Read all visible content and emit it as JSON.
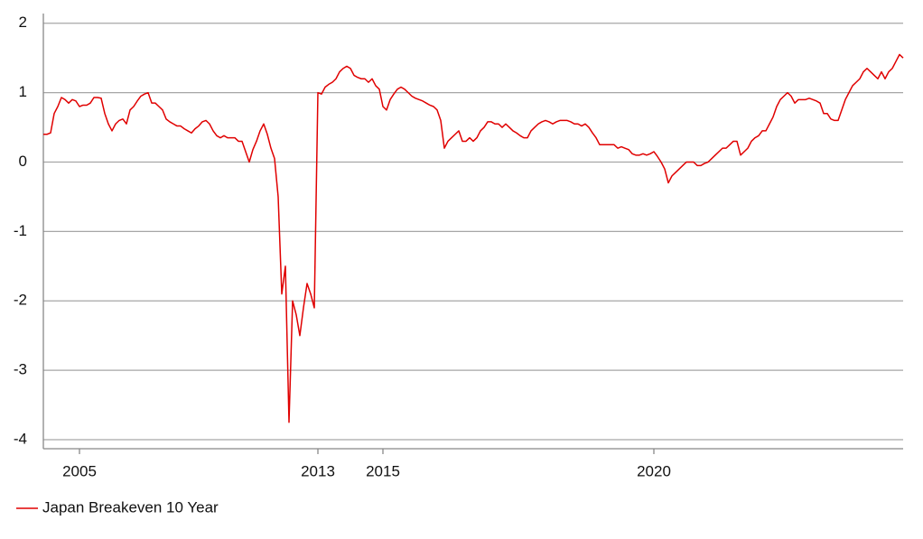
{
  "chart_data": {
    "type": "line",
    "categories": [
      null,
      null,
      null,
      null,
      null,
      null,
      null,
      null,
      null,
      null,
      "2005",
      null,
      null,
      null,
      null,
      null,
      null,
      null,
      null,
      null,
      null,
      null,
      null,
      null,
      null,
      null,
      null,
      null,
      null,
      null,
      null,
      null,
      null,
      null,
      null,
      null,
      null,
      null,
      null,
      null,
      null,
      null,
      null,
      null,
      null,
      null,
      null,
      null,
      null,
      null,
      null,
      null,
      null,
      null,
      null,
      null,
      null,
      null,
      null,
      null,
      null,
      null,
      null,
      null,
      null,
      null,
      null,
      null,
      null,
      null,
      null,
      null,
      null,
      null,
      null,
      null,
      "2013",
      null,
      null,
      null,
      null,
      null,
      null,
      null,
      null,
      null,
      null,
      null,
      null,
      null,
      null,
      null,
      null,
      null,
      "2015",
      null,
      null,
      null,
      null,
      null,
      null,
      null,
      null,
      null,
      null,
      null,
      null,
      null,
      null,
      null,
      null,
      null,
      null,
      null,
      null,
      null,
      null,
      null,
      null,
      null,
      null,
      null,
      null,
      null,
      null,
      null,
      null,
      null,
      null,
      null,
      null,
      null,
      null,
      null,
      null,
      null,
      null,
      null,
      null,
      null,
      null,
      null,
      null,
      null,
      null,
      null,
      null,
      null,
      null,
      null,
      null,
      null,
      null,
      null,
      null,
      null,
      null,
      null,
      null,
      null,
      null,
      null,
      null,
      null,
      null,
      null,
      null,
      null,
      null,
      "2020",
      null,
      null,
      null,
      null,
      null,
      null,
      null,
      null,
      null,
      null,
      null,
      null,
      null,
      null,
      null,
      null,
      null,
      null,
      null,
      null,
      null,
      null,
      null,
      null,
      null,
      null,
      null,
      null,
      null,
      null,
      null,
      null,
      null,
      null,
      null,
      null,
      null,
      null,
      null,
      null,
      null,
      null,
      null,
      null,
      null,
      null,
      null,
      null,
      null,
      null,
      null,
      null,
      null,
      null,
      null,
      null,
      null,
      null,
      null,
      null,
      null,
      null,
      null,
      null,
      null,
      null,
      null,
      null,
      null
    ],
    "series": [
      {
        "name": "Japan Breakeven 10 Year",
        "color": "#e00000",
        "values": [
          0.4,
          0.4,
          0.42,
          0.7,
          0.8,
          0.93,
          0.9,
          0.85,
          0.9,
          0.88,
          0.8,
          0.82,
          0.82,
          0.85,
          0.93,
          0.93,
          0.92,
          0.7,
          0.55,
          0.45,
          0.55,
          0.6,
          0.62,
          0.55,
          0.75,
          0.8,
          0.88,
          0.95,
          0.98,
          1.0,
          0.85,
          0.85,
          0.8,
          0.75,
          0.62,
          0.58,
          0.55,
          0.52,
          0.52,
          0.48,
          0.45,
          0.42,
          0.48,
          0.52,
          0.58,
          0.6,
          0.55,
          0.45,
          0.38,
          0.35,
          0.38,
          0.35,
          0.35,
          0.35,
          0.3,
          0.3,
          0.15,
          0.0,
          0.18,
          0.3,
          0.45,
          0.55,
          0.4,
          0.2,
          0.05,
          -0.5,
          -1.9,
          -1.5,
          -3.75,
          -2.0,
          -2.2,
          -2.5,
          -2.1,
          -1.75,
          -1.9,
          -2.1,
          1.0,
          0.98,
          1.08,
          1.12,
          1.15,
          1.2,
          1.3,
          1.35,
          1.38,
          1.35,
          1.25,
          1.22,
          1.2,
          1.2,
          1.15,
          1.2,
          1.1,
          1.05,
          0.8,
          0.75,
          0.9,
          0.98,
          1.05,
          1.08,
          1.05,
          1.0,
          0.95,
          0.92,
          0.9,
          0.88,
          0.85,
          0.82,
          0.8,
          0.75,
          0.6,
          0.2,
          0.3,
          0.35,
          0.4,
          0.45,
          0.3,
          0.3,
          0.35,
          0.3,
          0.35,
          0.45,
          0.5,
          0.58,
          0.58,
          0.55,
          0.55,
          0.5,
          0.55,
          0.5,
          0.45,
          0.42,
          0.38,
          0.35,
          0.35,
          0.45,
          0.5,
          0.55,
          0.58,
          0.6,
          0.58,
          0.55,
          0.58,
          0.6,
          0.6,
          0.6,
          0.58,
          0.55,
          0.55,
          0.52,
          0.55,
          0.5,
          0.42,
          0.35,
          0.25,
          0.25,
          0.25,
          0.25,
          0.25,
          0.2,
          0.22,
          0.2,
          0.18,
          0.12,
          0.1,
          0.1,
          0.12,
          0.1,
          0.12,
          0.15,
          0.08,
          0.0,
          -0.1,
          -0.3,
          -0.2,
          -0.15,
          -0.1,
          -0.05,
          0.0,
          0.0,
          0.0,
          -0.05,
          -0.05,
          -0.02,
          0.0,
          0.05,
          0.1,
          0.15,
          0.2,
          0.2,
          0.25,
          0.3,
          0.3,
          0.1,
          0.15,
          0.2,
          0.3,
          0.35,
          0.38,
          0.45,
          0.45,
          0.55,
          0.65,
          0.8,
          0.9,
          0.95,
          1.0,
          0.95,
          0.85,
          0.9,
          0.9,
          0.9,
          0.92,
          0.9,
          0.88,
          0.85,
          0.7,
          0.7,
          0.62,
          0.6,
          0.6,
          0.75,
          0.9,
          1.0,
          1.1,
          1.15,
          1.2,
          1.3,
          1.35,
          1.3,
          1.25,
          1.2,
          1.3,
          1.2,
          1.3,
          1.35,
          1.45,
          1.55,
          1.5
        ]
      }
    ],
    "ylim": [
      -4.13,
      2.14
    ],
    "yticks": [
      -4,
      -3,
      -2,
      -1,
      0,
      1,
      2
    ],
    "grid": true,
    "legend": "bottom-left"
  }
}
